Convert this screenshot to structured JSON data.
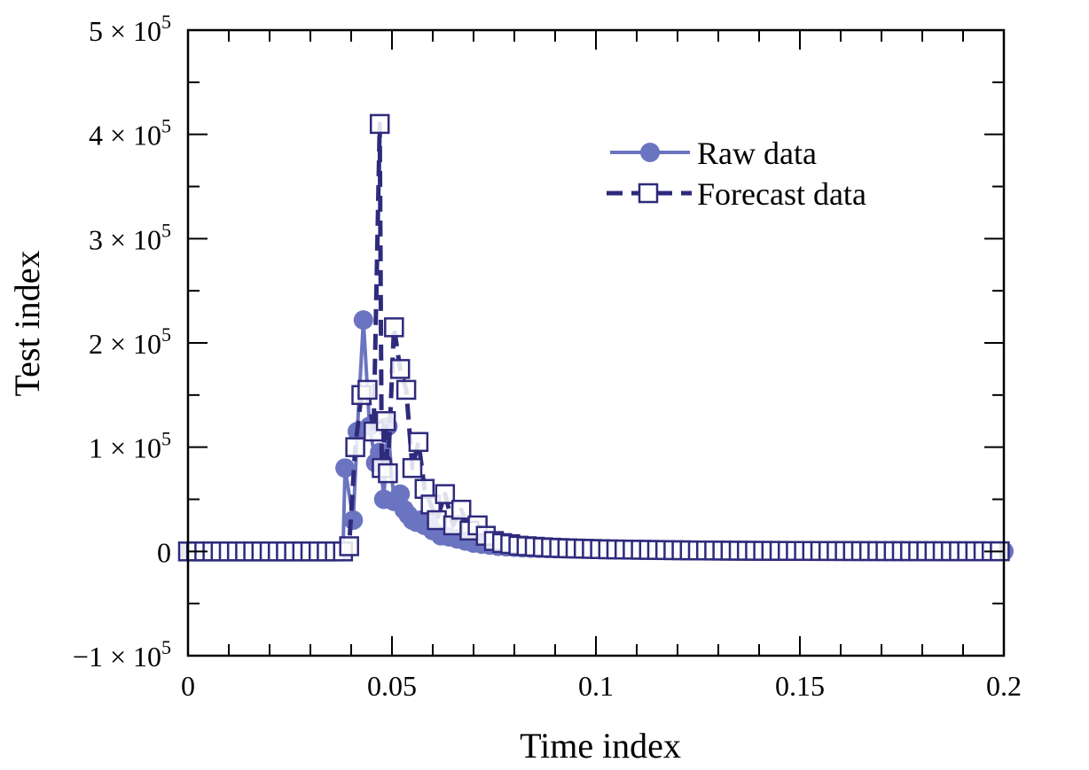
{
  "chart_data": {
    "type": "line",
    "title": "",
    "xlabel": "Time index",
    "ylabel": "Test index",
    "xlim": [
      0,
      0.2
    ],
    "ylim": [
      -100000,
      500000
    ],
    "x_ticks": [
      {
        "value": 0,
        "label": "0"
      },
      {
        "value": 0.05,
        "label": "0.05"
      },
      {
        "value": 0.1,
        "label": "0.1"
      },
      {
        "value": 0.15,
        "label": "0.15"
      },
      {
        "value": 0.2,
        "label": "0.2"
      }
    ],
    "y_ticks": [
      {
        "value": -100000,
        "mantissa": "−1 × 10",
        "exp": "5"
      },
      {
        "value": 0,
        "mantissa": "0",
        "exp": ""
      },
      {
        "value": 100000,
        "mantissa": "1 × 10",
        "exp": "5"
      },
      {
        "value": 200000,
        "mantissa": "2 × 10",
        "exp": "5"
      },
      {
        "value": 300000,
        "mantissa": "3 × 10",
        "exp": "5"
      },
      {
        "value": 400000,
        "mantissa": "4 × 10",
        "exp": "5"
      },
      {
        "value": 500000,
        "mantissa": "5 × 10",
        "exp": "5"
      }
    ],
    "grid": false,
    "legend_position": "top-right",
    "series": [
      {
        "name": "Raw data",
        "style": "solid",
        "marker": "filled-circle",
        "color": "#6b74c0",
        "x": [
          0,
          0.002,
          0.004,
          0.006,
          0.008,
          0.01,
          0.012,
          0.014,
          0.016,
          0.018,
          0.02,
          0.022,
          0.024,
          0.026,
          0.028,
          0.03,
          0.032,
          0.034,
          0.036,
          0.038,
          0.0385,
          0.0405,
          0.0415,
          0.043,
          0.0445,
          0.046,
          0.047,
          0.048,
          0.049,
          0.0505,
          0.052,
          0.053,
          0.054,
          0.055,
          0.056,
          0.057,
          0.058,
          0.059,
          0.06,
          0.062,
          0.064,
          0.066,
          0.068,
          0.07,
          0.072,
          0.074,
          0.076,
          0.078,
          0.08,
          0.082,
          0.084,
          0.086,
          0.088,
          0.09,
          0.092,
          0.094,
          0.096,
          0.098,
          0.1,
          0.102,
          0.104,
          0.106,
          0.108,
          0.11,
          0.112,
          0.114,
          0.116,
          0.118,
          0.12,
          0.122,
          0.124,
          0.126,
          0.128,
          0.13,
          0.132,
          0.134,
          0.136,
          0.138,
          0.14,
          0.142,
          0.144,
          0.146,
          0.148,
          0.15,
          0.152,
          0.154,
          0.156,
          0.158,
          0.16,
          0.162,
          0.164,
          0.166,
          0.168,
          0.17,
          0.172,
          0.174,
          0.176,
          0.178,
          0.18,
          0.182,
          0.184,
          0.186,
          0.188,
          0.19,
          0.192,
          0.194,
          0.196,
          0.198,
          0.2
        ],
        "y": [
          0,
          0,
          0,
          0,
          0,
          0,
          0,
          0,
          0,
          0,
          0,
          0,
          0,
          0,
          0,
          0,
          0,
          0,
          0,
          0,
          80000,
          30000,
          115000,
          222000,
          120000,
          85000,
          95000,
          50000,
          120000,
          48000,
          55000,
          40000,
          35000,
          30000,
          28000,
          30000,
          25000,
          28000,
          20000,
          15000,
          14000,
          12000,
          10000,
          8000,
          7000,
          6000,
          5000,
          4500,
          4000,
          3500,
          3200,
          3000,
          2800,
          2600,
          2500,
          2400,
          2300,
          2200,
          2000,
          1900,
          1800,
          1700,
          1600,
          1500,
          1400,
          1300,
          1200,
          1100,
          1000,
          950,
          900,
          850,
          800,
          750,
          700,
          650,
          600,
          550,
          500,
          480,
          460,
          440,
          420,
          400,
          390,
          380,
          370,
          360,
          350,
          340,
          330,
          320,
          310,
          300,
          290,
          280,
          270,
          260,
          250,
          240,
          230,
          220,
          210,
          200,
          190,
          180,
          170,
          160,
          150
        ]
      },
      {
        "name": "Forecast data",
        "style": "dashed",
        "marker": "open-square",
        "color": "#2e2a7c",
        "x": [
          0,
          0.002,
          0.004,
          0.006,
          0.008,
          0.01,
          0.012,
          0.014,
          0.016,
          0.018,
          0.02,
          0.022,
          0.024,
          0.026,
          0.028,
          0.03,
          0.032,
          0.034,
          0.036,
          0.038,
          0.0395,
          0.041,
          0.0425,
          0.044,
          0.0455,
          0.047,
          0.0475,
          0.0485,
          0.049,
          0.0505,
          0.052,
          0.0535,
          0.055,
          0.0565,
          0.058,
          0.0595,
          0.061,
          0.063,
          0.065,
          0.067,
          0.069,
          0.071,
          0.073,
          0.075,
          0.077,
          0.079,
          0.081,
          0.083,
          0.085,
          0.087,
          0.089,
          0.091,
          0.093,
          0.095,
          0.097,
          0.099,
          0.101,
          0.103,
          0.105,
          0.107,
          0.109,
          0.111,
          0.113,
          0.115,
          0.117,
          0.119,
          0.121,
          0.123,
          0.125,
          0.127,
          0.129,
          0.131,
          0.133,
          0.135,
          0.137,
          0.139,
          0.141,
          0.143,
          0.145,
          0.147,
          0.149,
          0.151,
          0.153,
          0.155,
          0.157,
          0.159,
          0.161,
          0.163,
          0.165,
          0.167,
          0.169,
          0.171,
          0.173,
          0.175,
          0.177,
          0.179,
          0.181,
          0.183,
          0.185,
          0.187,
          0.189,
          0.191,
          0.193,
          0.195,
          0.197,
          0.199
        ],
        "y": [
          0,
          0,
          0,
          0,
          0,
          0,
          0,
          0,
          0,
          0,
          0,
          0,
          0,
          0,
          0,
          0,
          0,
          0,
          0,
          0,
          5000,
          100000,
          150000,
          155000,
          115000,
          410000,
          80000,
          125000,
          75000,
          215000,
          175000,
          155000,
          80000,
          105000,
          60000,
          45000,
          30000,
          55000,
          25000,
          40000,
          20000,
          25000,
          15000,
          10000,
          8000,
          7000,
          5500,
          5000,
          4500,
          4000,
          3600,
          3300,
          3000,
          2800,
          2600,
          2400,
          2200,
          2000,
          1900,
          1800,
          1700,
          1600,
          1500,
          1400,
          1300,
          1200,
          1100,
          1000,
          950,
          900,
          850,
          800,
          750,
          700,
          650,
          600,
          580,
          560,
          540,
          520,
          500,
          480,
          460,
          440,
          420,
          400,
          380,
          360,
          340,
          320,
          300,
          290,
          280,
          270,
          260,
          250,
          240,
          230,
          220,
          210,
          200,
          190,
          180,
          170,
          160,
          150
        ]
      }
    ]
  }
}
